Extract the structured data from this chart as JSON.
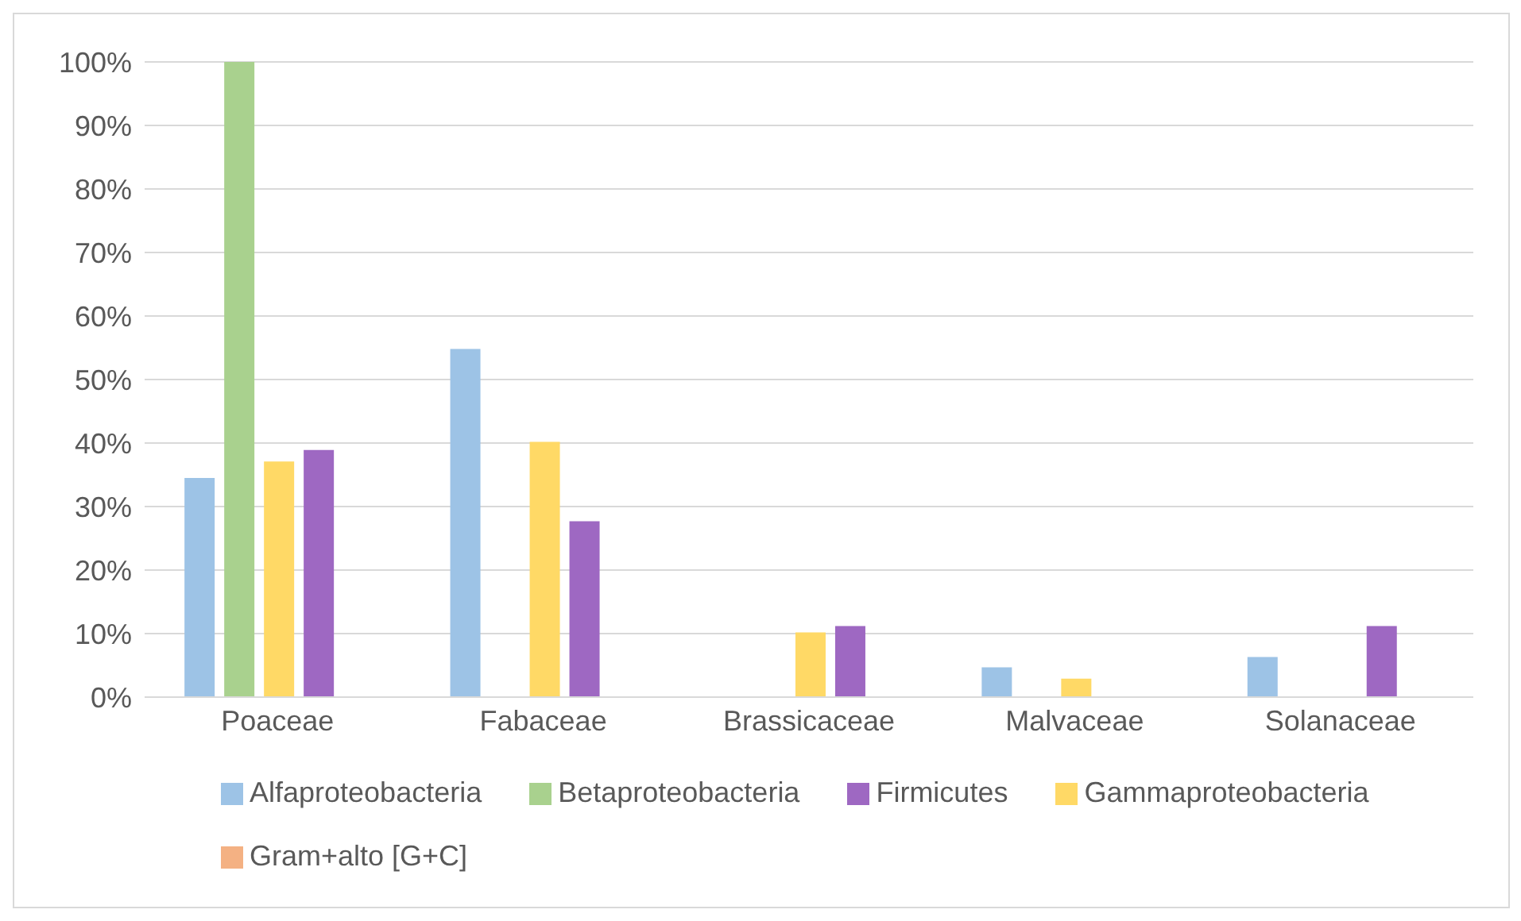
{
  "chart_data": {
    "type": "bar",
    "categories": [
      "Poaceae",
      "Fabaceae",
      "Brassicaceae",
      "Malvaceae",
      "Solanaceae"
    ],
    "series": [
      {
        "name": "Alfaproteobacteria",
        "color": "#9dc3e6",
        "values": [
          34.5,
          54.8,
          0,
          4.7,
          6.3
        ]
      },
      {
        "name": "Betaproteobacteria",
        "color": "#a9d18e",
        "values": [
          100,
          0,
          0,
          0,
          0
        ]
      },
      {
        "name": "Gammaproteobacteria",
        "color": "#ffd966",
        "values": [
          37.1,
          40.2,
          10.2,
          2.9,
          0
        ]
      },
      {
        "name": "Firmicutes",
        "color": "#9e68c2",
        "values": [
          38.9,
          27.7,
          11.2,
          0,
          11.2
        ]
      },
      {
        "name": "Gram+alto [G+C]",
        "color": "#f4b183",
        "values": [
          0,
          0,
          0,
          0,
          0
        ]
      }
    ],
    "ylim": [
      0,
      100
    ],
    "yticks": [
      {
        "value": 0,
        "label": "0%"
      },
      {
        "value": 10,
        "label": "10%"
      },
      {
        "value": 20,
        "label": "20%"
      },
      {
        "value": 30,
        "label": "30%"
      },
      {
        "value": 40,
        "label": "40%"
      },
      {
        "value": 50,
        "label": "50%"
      },
      {
        "value": 60,
        "label": "60%"
      },
      {
        "value": 70,
        "label": "70%"
      },
      {
        "value": 80,
        "label": "80%"
      },
      {
        "value": 90,
        "label": "90%"
      },
      {
        "value": 100,
        "label": "100%"
      }
    ],
    "grid": "y",
    "legend": "bottom"
  }
}
